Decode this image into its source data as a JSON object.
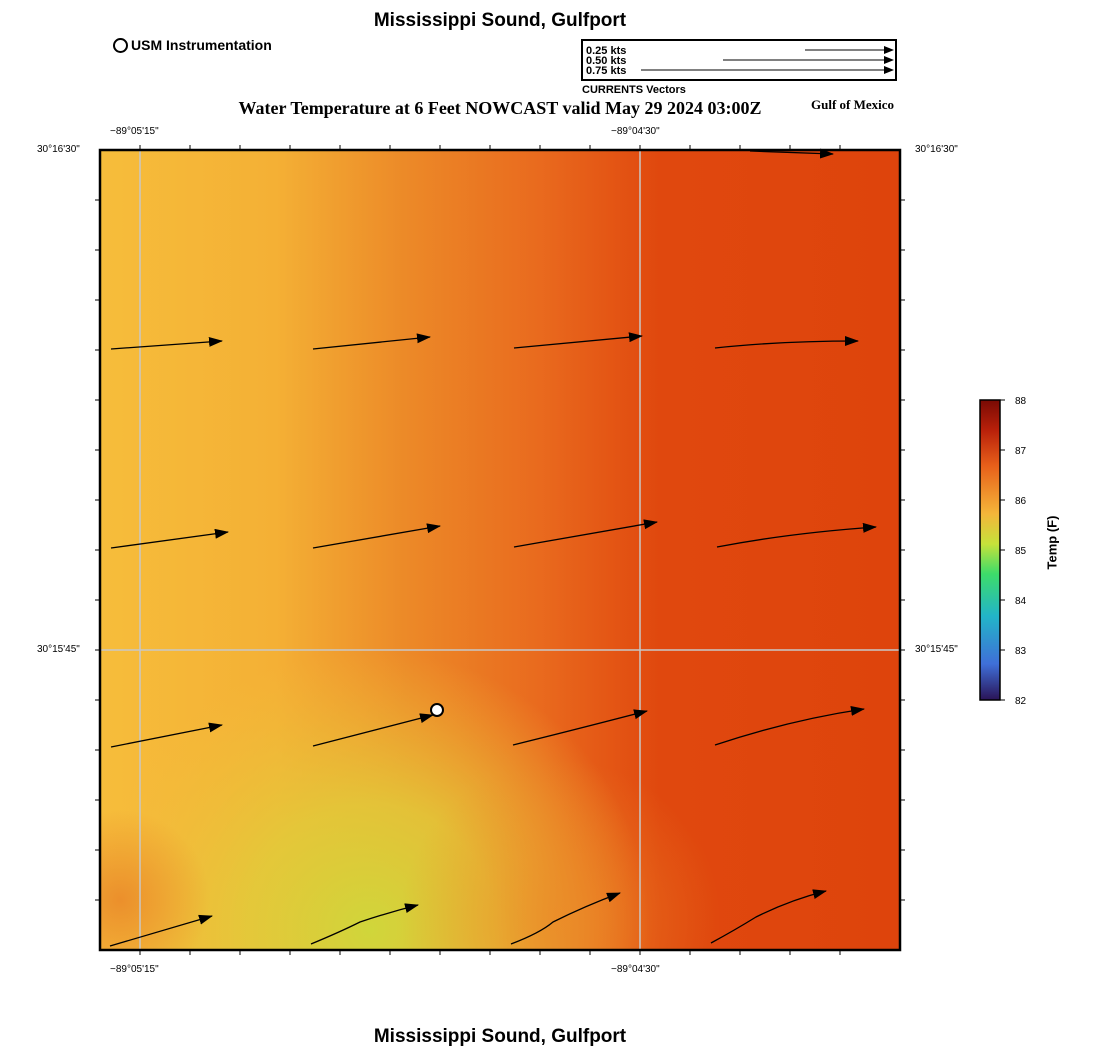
{
  "title_top": "Mississippi Sound, Gulfport",
  "title_bottom": "Mississippi Sound, Gulfport",
  "subtitle": "Water Temperature at 6 Feet NOWCAST valid May 29 2024 03:00Z",
  "region_label": "Gulf of Mexico",
  "instrument_legend": {
    "label": "USM Instrumentation",
    "icon": "circle-marker-icon"
  },
  "current_key": {
    "labels": [
      "0.25 kts",
      "0.50 kts",
      "0.75 kts"
    ],
    "speeds_kts": [
      0.25,
      0.5,
      0.75
    ],
    "caption": "CURRENTS Vectors"
  },
  "axes": {
    "lon_labels": [
      "−89°05'15\"",
      "−89°04'30\""
    ],
    "lat_labels": [
      "30°16'30\"",
      "30°15'45\""
    ],
    "lon_labels_bottom": [
      "−89°05'15\"",
      "−89°04'30\""
    ],
    "lat_labels_right": [
      "30°16'30\"",
      "30°15'45\""
    ]
  },
  "colorbar": {
    "title": "Temp (F)",
    "ticks": [
      "88",
      "87",
      "86",
      "85",
      "84",
      "83",
      "82"
    ],
    "min": 82,
    "max": 88,
    "colors": [
      "#2a1356",
      "#3f6fd8",
      "#22b5c8",
      "#3ddc6a",
      "#c6e23a",
      "#f4b63a",
      "#e8601a",
      "#b8200a",
      "#7a0a04"
    ]
  },
  "colors": {
    "warm_orange": "#e04a0d",
    "mid_orange": "#ea8227",
    "yellow": "#f6b83a",
    "yellow_green": "#cdd63a",
    "grid": "#c8c8c8"
  }
}
